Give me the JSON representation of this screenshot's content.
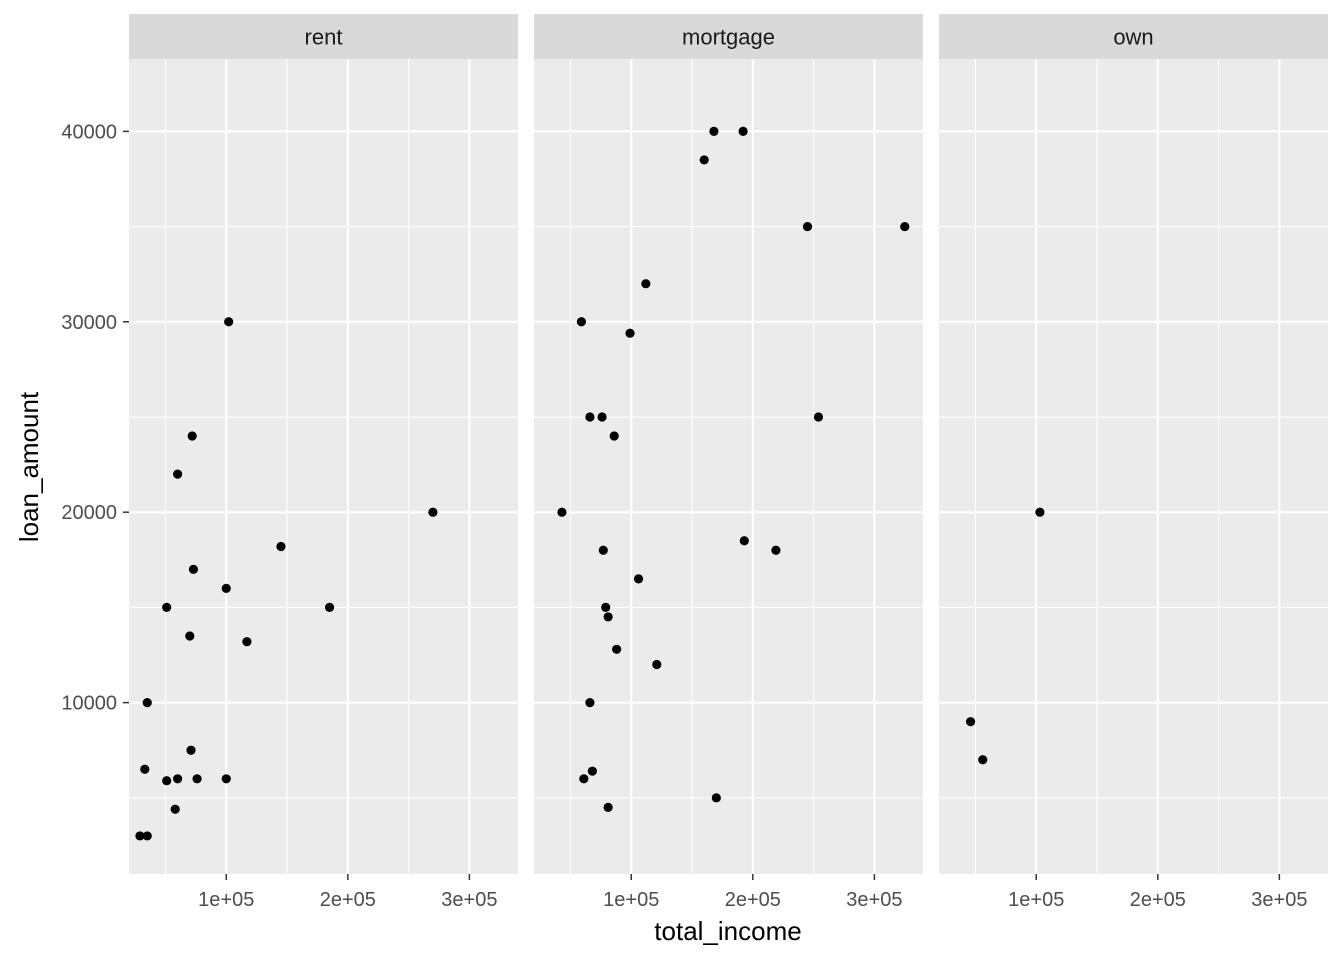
{
  "chart_data": {
    "type": "scatter",
    "facet_variable": "home_ownership",
    "xlabel": "total_income",
    "ylabel": "loan_amount",
    "xlim": [
      20000,
      340000
    ],
    "ylim": [
      1000,
      43800
    ],
    "x_ticks": [
      100000,
      200000,
      300000
    ],
    "x_tick_labels": [
      "1e+05",
      "2e+05",
      "3e+05"
    ],
    "x_minor_ticks": [
      50000,
      150000,
      250000
    ],
    "y_ticks": [
      10000,
      20000,
      30000,
      40000
    ],
    "y_tick_labels": [
      "10000",
      "20000",
      "30000",
      "40000"
    ],
    "y_minor_ticks": [
      5000,
      15000,
      25000,
      35000
    ],
    "grid": true,
    "colors": {
      "panel_background": "#ebebeb",
      "strip_background": "#d9d9d9",
      "grid": "#ffffff",
      "point": "#000000",
      "tick_text": "#4d4d4d"
    },
    "facets": [
      {
        "label": "rent",
        "points": [
          [
            102000,
            30000
          ],
          [
            72000,
            24000
          ],
          [
            60000,
            22000
          ],
          [
            270000,
            20000
          ],
          [
            145000,
            18200
          ],
          [
            73000,
            17000
          ],
          [
            100000,
            16000
          ],
          [
            51000,
            15000
          ],
          [
            185000,
            15000
          ],
          [
            70000,
            13500
          ],
          [
            117000,
            13200
          ],
          [
            35000,
            10000
          ],
          [
            71000,
            7500
          ],
          [
            33000,
            6500
          ],
          [
            51000,
            5900
          ],
          [
            60000,
            6000
          ],
          [
            76000,
            6000
          ],
          [
            100000,
            6000
          ],
          [
            58000,
            4400
          ],
          [
            29000,
            3000
          ],
          [
            35000,
            3000
          ]
        ]
      },
      {
        "label": "mortgage",
        "points": [
          [
            168000,
            40000
          ],
          [
            192000,
            40000
          ],
          [
            160000,
            38500
          ],
          [
            245000,
            35000
          ],
          [
            325000,
            35000
          ],
          [
            112000,
            32000
          ],
          [
            59000,
            30000
          ],
          [
            99000,
            29400
          ],
          [
            66000,
            25000
          ],
          [
            76000,
            25000
          ],
          [
            254000,
            25000
          ],
          [
            86000,
            24000
          ],
          [
            43000,
            20000
          ],
          [
            193000,
            18500
          ],
          [
            77000,
            18000
          ],
          [
            219000,
            18000
          ],
          [
            106000,
            16500
          ],
          [
            79000,
            15000
          ],
          [
            81000,
            14500
          ],
          [
            88000,
            12800
          ],
          [
            121000,
            12000
          ],
          [
            66000,
            10000
          ],
          [
            68000,
            6400
          ],
          [
            61000,
            6000
          ],
          [
            81000,
            4500
          ],
          [
            170000,
            5000
          ]
        ]
      },
      {
        "label": "own",
        "points": [
          [
            103000,
            20000
          ],
          [
            46000,
            9000
          ],
          [
            56000,
            7000
          ]
        ]
      }
    ]
  }
}
